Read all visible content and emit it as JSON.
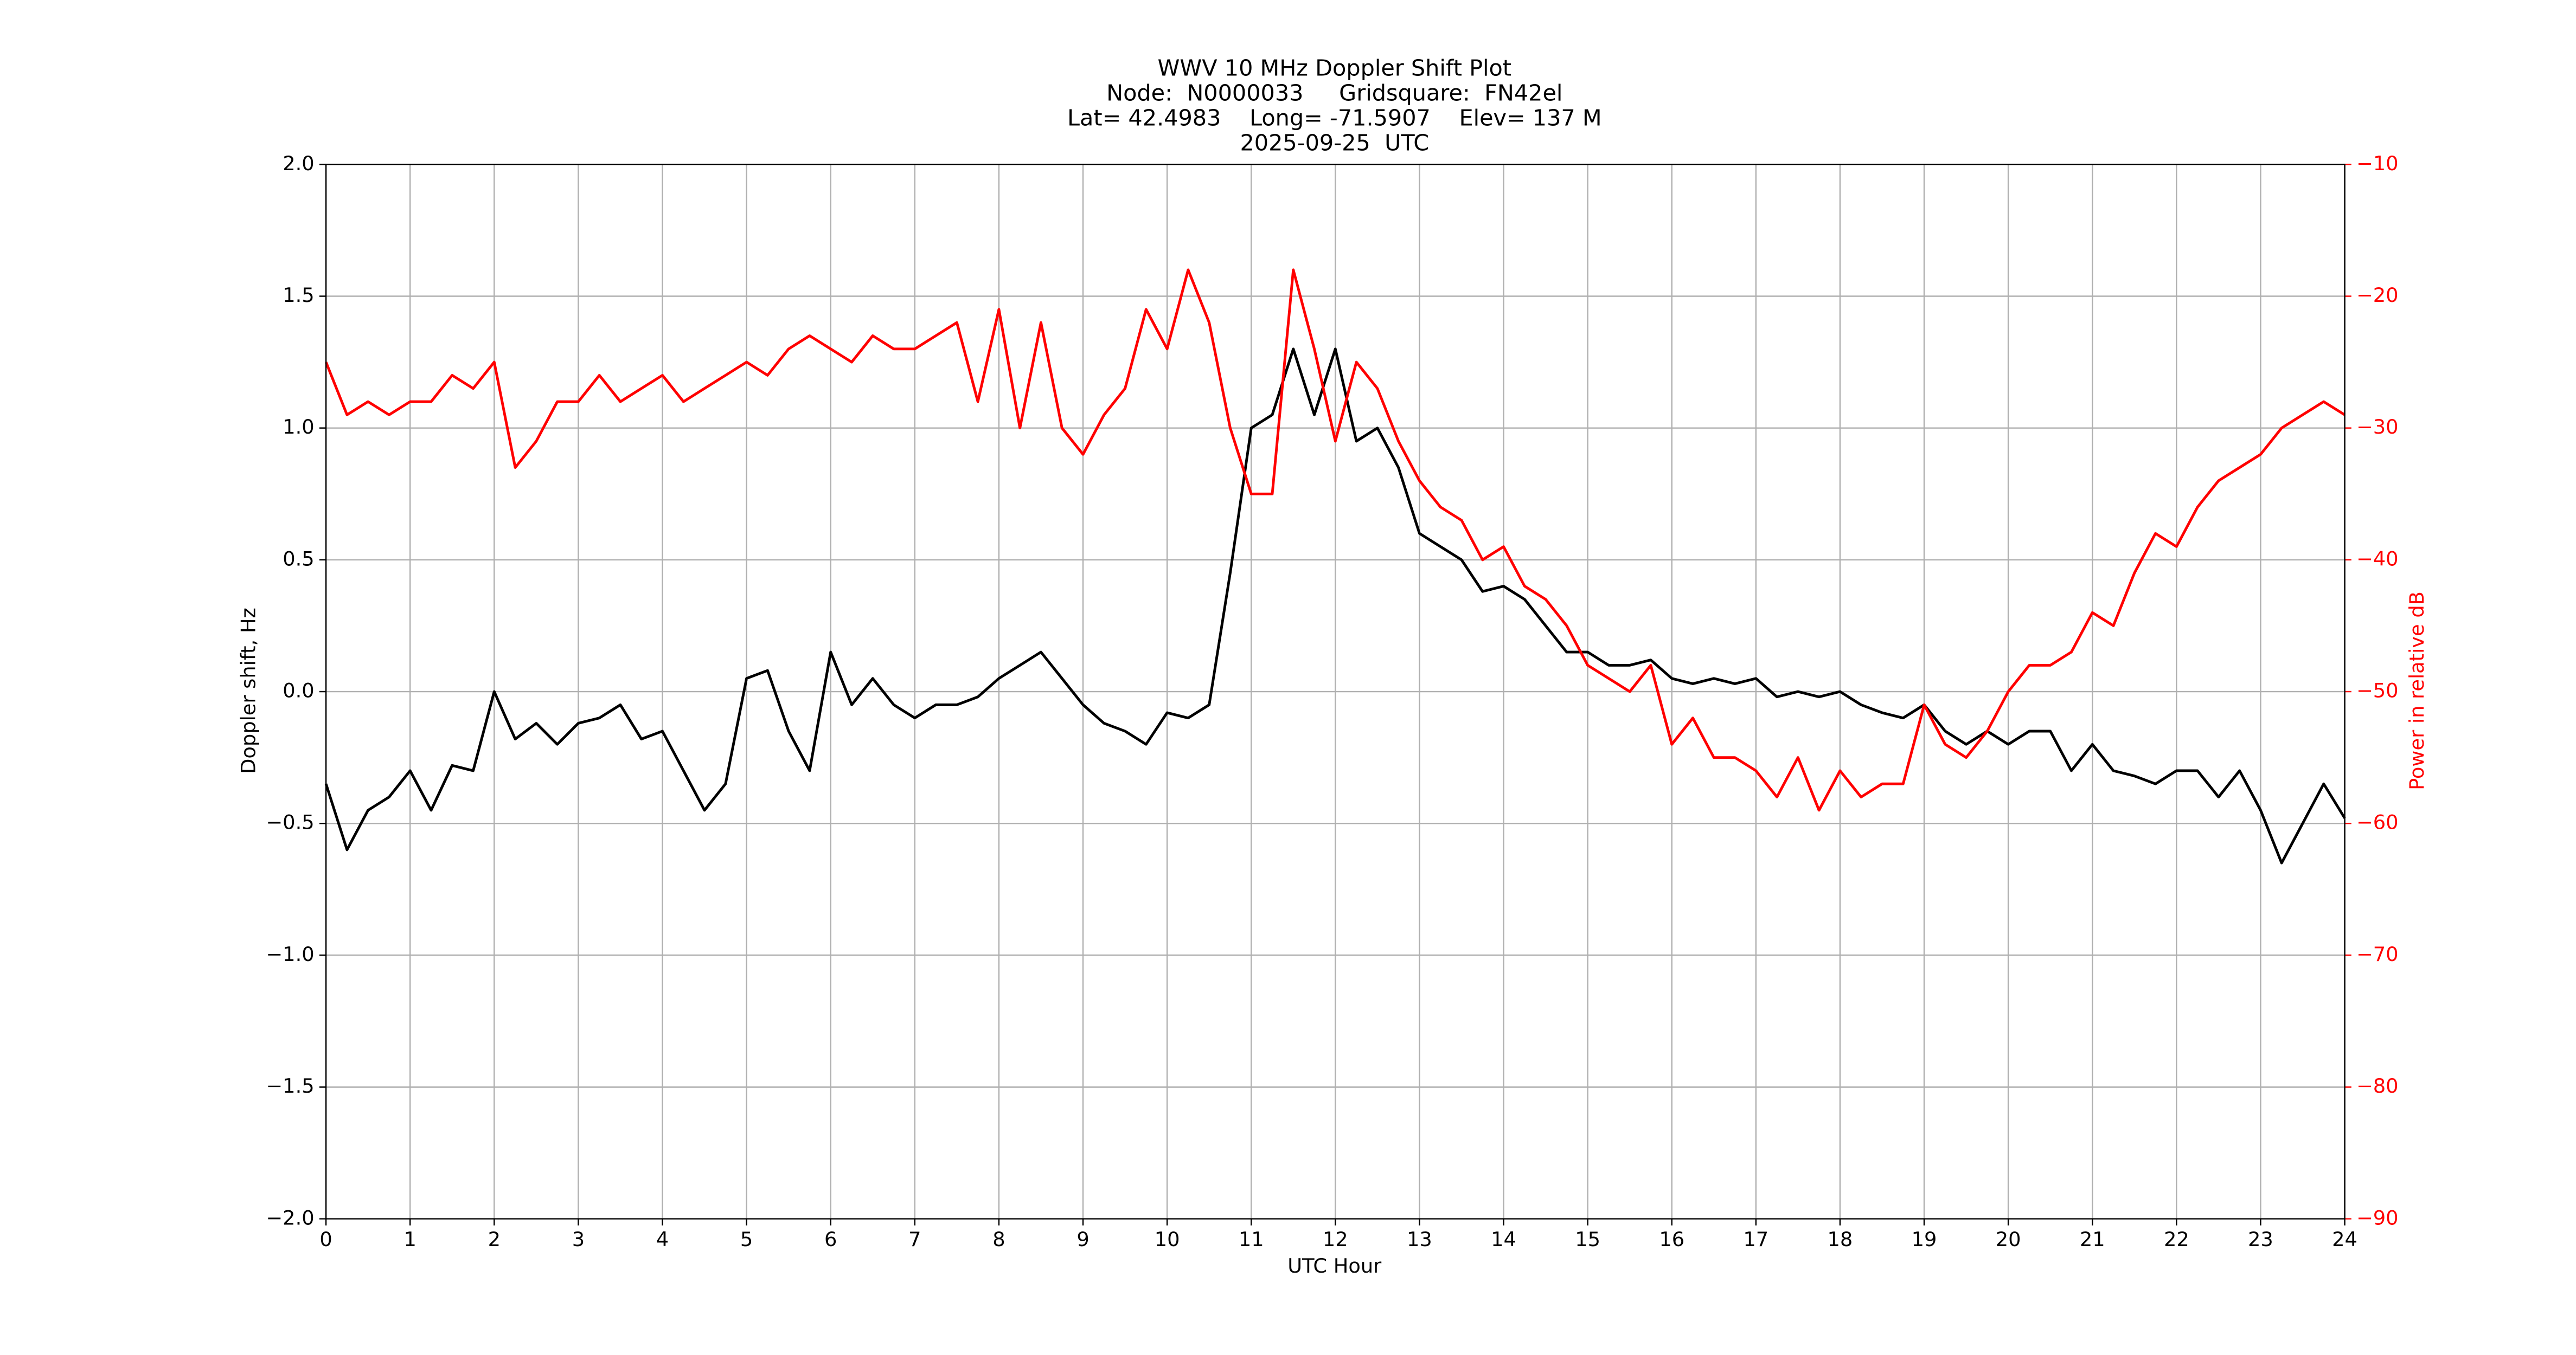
{
  "chart_data": {
    "type": "line",
    "title": "WWV 10 MHz Doppler Shift Plot",
    "subtitle": [
      "Node:  N0000033     Gridsquare:  FN42el",
      "Lat= 42.4983    Long= -71.5907    Elev= 137 M",
      "2025-09-25  UTC"
    ],
    "xlabel": "UTC Hour",
    "ylabel": "Doppler shift, Hz",
    "y2label": "Power in relative dB",
    "x": [
      0,
      0.25,
      0.5,
      0.75,
      1,
      1.25,
      1.5,
      1.75,
      2,
      2.25,
      2.5,
      2.75,
      3,
      3.25,
      3.5,
      3.75,
      4,
      4.25,
      4.5,
      4.75,
      5,
      5.25,
      5.5,
      5.75,
      6,
      6.25,
      6.5,
      6.75,
      7,
      7.25,
      7.5,
      7.75,
      8,
      8.25,
      8.5,
      8.75,
      9,
      9.25,
      9.5,
      9.75,
      10,
      10.25,
      10.5,
      10.75,
      11,
      11.25,
      11.5,
      11.75,
      12,
      12.25,
      12.5,
      12.75,
      13,
      13.25,
      13.5,
      13.75,
      14,
      14.25,
      14.5,
      14.75,
      15,
      15.25,
      15.5,
      15.75,
      16,
      16.25,
      16.5,
      16.75,
      17,
      17.25,
      17.5,
      17.75,
      18,
      18.25,
      18.5,
      18.75,
      19,
      19.25,
      19.5,
      19.75,
      20,
      20.25,
      20.5,
      20.75,
      21,
      21.25,
      21.5,
      21.75,
      22,
      22.25,
      22.5,
      22.75,
      23,
      23.25,
      23.5,
      23.75,
      24
    ],
    "series": [
      {
        "color": "#000000",
        "values": [
          -0.35,
          -0.6,
          -0.45,
          -0.4,
          -0.3,
          -0.45,
          -0.28,
          -0.3,
          0.0,
          -0.18,
          -0.12,
          -0.2,
          -0.12,
          -0.1,
          -0.05,
          -0.18,
          -0.15,
          -0.3,
          -0.45,
          -0.35,
          0.05,
          0.08,
          -0.15,
          -0.3,
          0.15,
          -0.05,
          0.05,
          -0.05,
          -0.1,
          -0.05,
          -0.05,
          -0.02,
          0.05,
          0.1,
          0.15,
          0.05,
          -0.05,
          -0.12,
          -0.15,
          -0.2,
          -0.08,
          -0.1,
          -0.05,
          0.45,
          1.0,
          1.05,
          1.3,
          1.05,
          1.3,
          0.95,
          1.0,
          0.85,
          0.6,
          0.55,
          0.5,
          0.38,
          0.4,
          0.35,
          0.25,
          0.15,
          0.15,
          0.1,
          0.1,
          0.12,
          0.05,
          0.03,
          0.05,
          0.03,
          0.05,
          -0.02,
          0.0,
          -0.02,
          0.0,
          -0.05,
          -0.08,
          -0.1,
          -0.05,
          -0.15,
          -0.2,
          -0.15,
          -0.2,
          -0.15,
          -0.15,
          -0.3,
          -0.2,
          -0.3,
          -0.32,
          -0.35,
          -0.3,
          -0.3,
          -0.4,
          -0.3,
          -0.45,
          -0.65,
          -0.5,
          -0.35,
          -0.48
        ]
      },
      {
        "color": "#ff0000",
        "axis": "y2",
        "values": [
          -25,
          -29,
          -28,
          -29,
          -28,
          -28,
          -26,
          -27,
          -25,
          -33,
          -31,
          -28,
          -28,
          -26,
          -28,
          -27,
          -26,
          -28,
          -27,
          -26,
          -25,
          -26,
          -24,
          -23,
          -24,
          -25,
          -23,
          -24,
          -24,
          -23,
          -22,
          -28,
          -21,
          -30,
          -22,
          -30,
          -32,
          -29,
          -27,
          -21,
          -24,
          -18,
          -22,
          -30,
          -35,
          -35,
          -18,
          -24,
          -31,
          -25,
          -27,
          -31,
          -34,
          -36,
          -37,
          -40,
          -39,
          -42,
          -43,
          -45,
          -48,
          -49,
          -50,
          -48,
          -54,
          -52,
          -55,
          -55,
          -56,
          -58,
          -55,
          -59,
          -56,
          -58,
          -57,
          -57,
          -51,
          -54,
          -55,
          -53,
          -50,
          -48,
          -48,
          -47,
          -44,
          -45,
          -41,
          -38,
          -39,
          -36,
          -34,
          -33,
          -32,
          -30,
          -29,
          -28,
          -29
        ]
      }
    ],
    "xlim": [
      0,
      24
    ],
    "xticks": [
      0,
      1,
      2,
      3,
      4,
      5,
      6,
      7,
      8,
      9,
      10,
      11,
      12,
      13,
      14,
      15,
      16,
      17,
      18,
      19,
      20,
      21,
      22,
      23,
      24
    ],
    "ylim": [
      -2,
      2
    ],
    "yticks": [
      {
        "value": -2,
        "label": "−2.0"
      },
      {
        "value": -1.5,
        "label": "−1.5"
      },
      {
        "value": -1,
        "label": "−1.0"
      },
      {
        "value": -0.5,
        "label": "−0.5"
      },
      {
        "value": 0,
        "label": "0.0"
      },
      0.5,
      {
        "value": 1,
        "label": "1.0"
      },
      1.5,
      {
        "value": 2,
        "label": "2.0"
      }
    ],
    "y2lim": [
      -90,
      -10
    ],
    "y2ticks": [
      {
        "value": -90,
        "label": "−90"
      },
      {
        "value": -80,
        "label": "−80"
      },
      {
        "value": -70,
        "label": "−70"
      },
      {
        "value": -60,
        "label": "−60"
      },
      {
        "value": -50,
        "label": "−50"
      },
      {
        "value": -40,
        "label": "−40"
      },
      {
        "value": -30,
        "label": "−30"
      },
      {
        "value": -20,
        "label": "−20"
      },
      {
        "value": -10,
        "label": "−10"
      }
    ],
    "y2color": "#ff0000",
    "grid": true
  }
}
